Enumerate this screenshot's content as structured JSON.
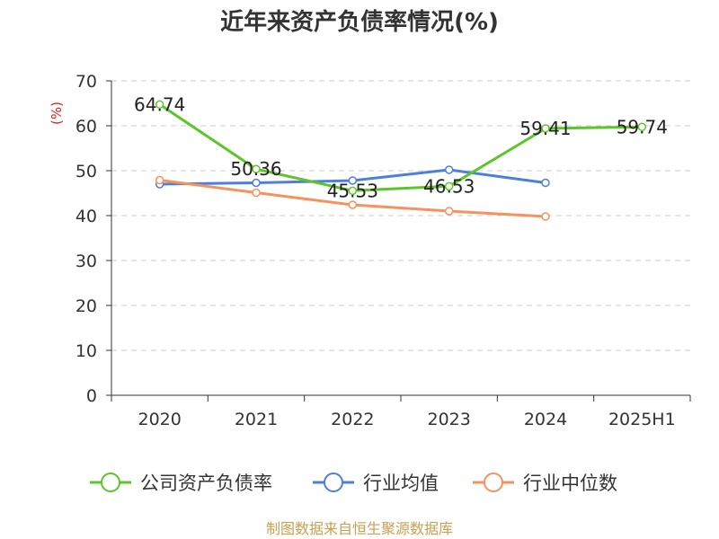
{
  "chart_data": {
    "type": "line",
    "title": "近年来资产负债率情况(%)",
    "y_unit": "(%)",
    "categories": [
      "2020",
      "2021",
      "2022",
      "2023",
      "2024",
      "2025H1"
    ],
    "ylim": [
      0,
      70
    ],
    "y_ticks": [
      "0",
      "10",
      "20",
      "30",
      "40",
      "50",
      "60",
      "70"
    ],
    "grid": true,
    "legend_position": "bottom",
    "series": [
      {
        "name": "公司资产负债率",
        "color": "#5cc528",
        "values": [
          64.74,
          50.36,
          45.53,
          46.53,
          59.41,
          59.74
        ],
        "labels": [
          "64.74",
          "50.36",
          "45.53",
          "46.53",
          "59.41",
          "59.74"
        ]
      },
      {
        "name": "行业均值",
        "color": "#4f7fdc",
        "values": [
          47.0,
          47.3,
          47.8,
          50.2,
          47.3,
          null
        ]
      },
      {
        "name": "行业中位数",
        "color": "#f5925f",
        "values": [
          47.9,
          45.1,
          42.4,
          41.0,
          39.8,
          null
        ]
      }
    ]
  },
  "source_text": "制图数据来自恒生聚源数据库",
  "colors": {
    "axis": "#333333",
    "grid": "#cccccc",
    "unit": "#e02020",
    "source": "#c8a050"
  }
}
